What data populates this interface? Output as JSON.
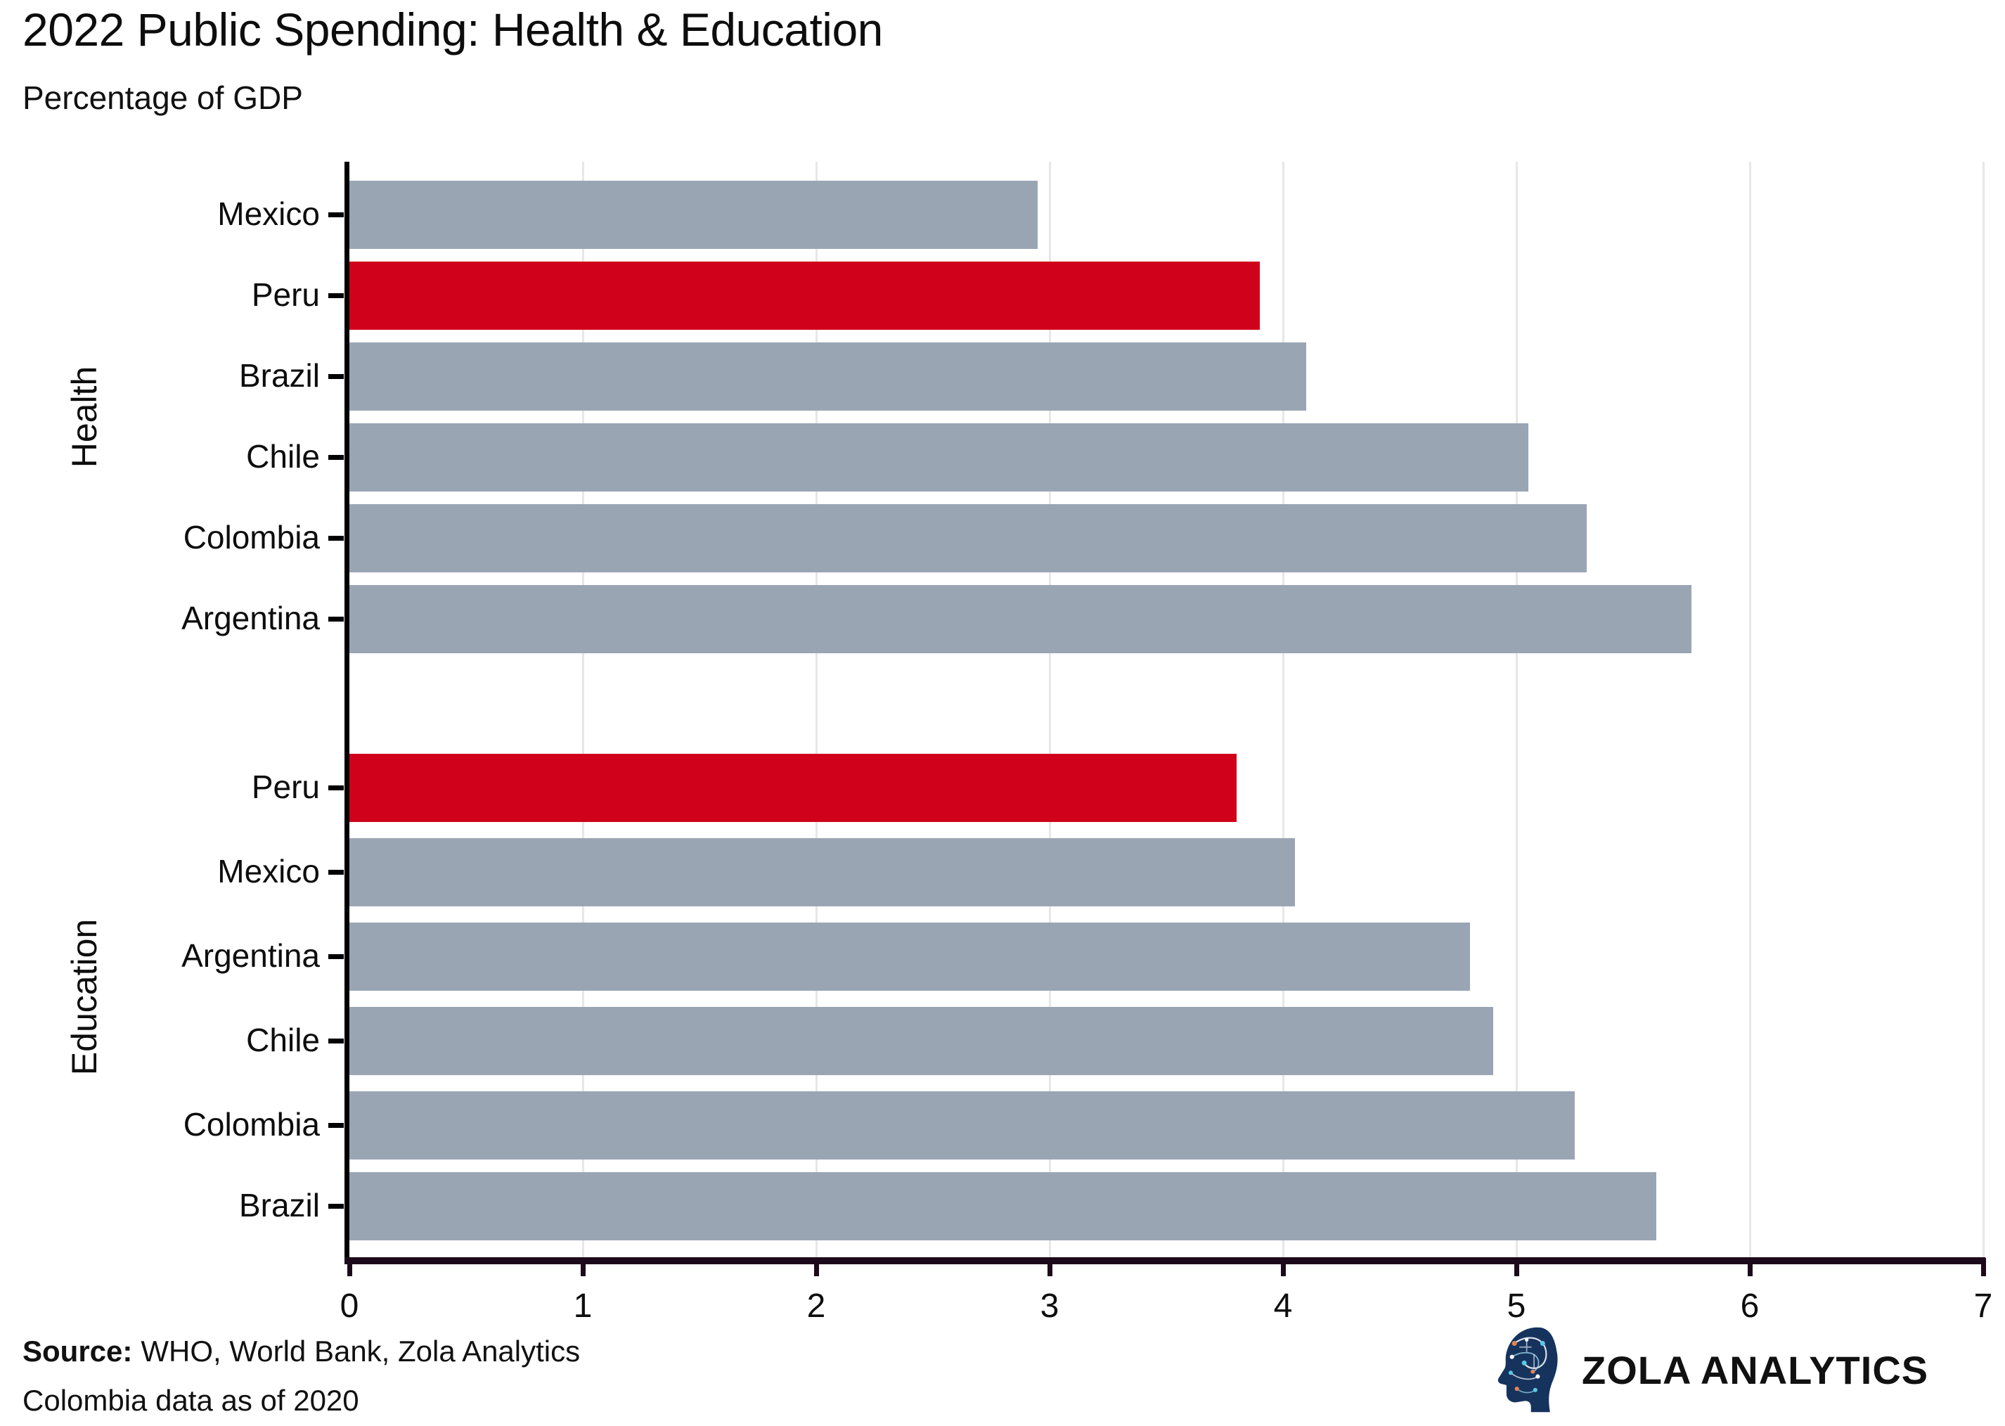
{
  "header": {
    "title": "2022 Public Spending: Health & Education",
    "subtitle": "Percentage of GDP"
  },
  "footer": {
    "source_label": "Source:",
    "source_text": "WHO, World Bank, Zola Analytics",
    "note": "Colombia data as of 2020"
  },
  "brand": {
    "name": "ZOLA ANALYTICS",
    "logo_icon": "circuit-head-icon"
  },
  "colors": {
    "bar_default": "#9AA5B4",
    "bar_highlight": "#D0021B",
    "axis_line_dark": "#1C0A1A",
    "y_axis_line": "#000000",
    "grid_line": "#E7E7E7",
    "text": "#0D0D0D",
    "logo_navy": "#16335E",
    "logo_cyan": "#59C8E8",
    "logo_orange": "#E8854F"
  },
  "chart_data": {
    "type": "bar",
    "orientation": "horizontal",
    "title": "2022 Public Spending: Health & Education",
    "subtitle": "Percentage of GDP",
    "xlabel": "",
    "xlim": [
      0,
      7
    ],
    "xticks": [
      0,
      1,
      2,
      3,
      4,
      5,
      6,
      7
    ],
    "grid": "vertical-light",
    "legend": "none",
    "highlight_country": "Peru",
    "groups": [
      {
        "label": "Health",
        "rows": [
          {
            "country": "Mexico",
            "value": 2.95,
            "highlight": false
          },
          {
            "country": "Peru",
            "value": 3.9,
            "highlight": true
          },
          {
            "country": "Brazil",
            "value": 4.1,
            "highlight": false
          },
          {
            "country": "Chile",
            "value": 5.05,
            "highlight": false
          },
          {
            "country": "Colombia",
            "value": 5.3,
            "highlight": false
          },
          {
            "country": "Argentina",
            "value": 5.75,
            "highlight": false
          }
        ]
      },
      {
        "label": "Education",
        "rows": [
          {
            "country": "Peru",
            "value": 3.8,
            "highlight": true
          },
          {
            "country": "Mexico",
            "value": 4.05,
            "highlight": false
          },
          {
            "country": "Argentina",
            "value": 4.8,
            "highlight": false
          },
          {
            "country": "Chile",
            "value": 4.9,
            "highlight": false
          },
          {
            "country": "Colombia",
            "value": 5.25,
            "highlight": false
          },
          {
            "country": "Brazil",
            "value": 5.6,
            "highlight": false
          }
        ]
      }
    ]
  }
}
